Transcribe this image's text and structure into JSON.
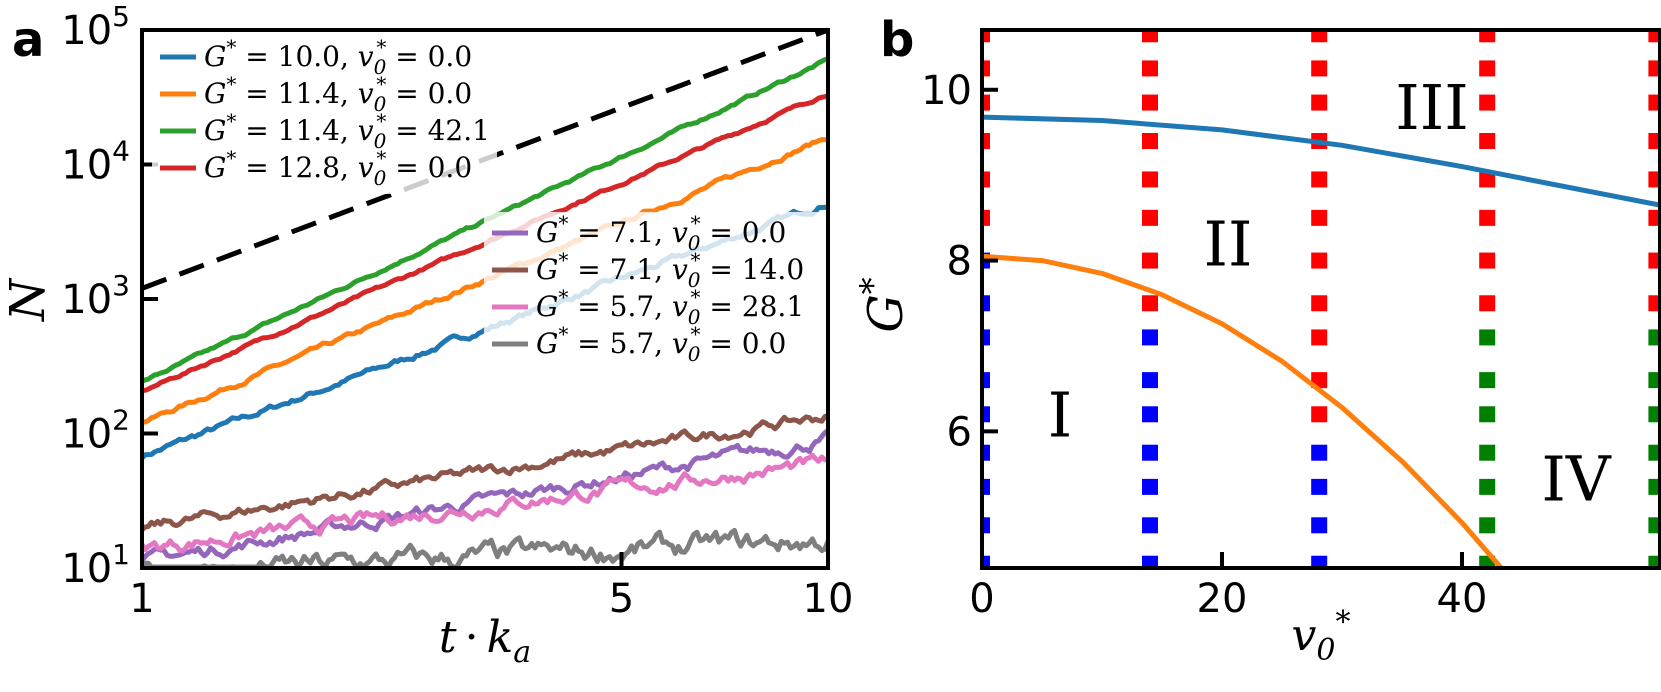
{
  "chart_data": [
    {
      "panel_label": "a",
      "type": "line",
      "xlabel": "t · k_a",
      "ylabel": "N",
      "x_scale": "log",
      "y_scale": "log",
      "xlim": [
        1,
        10
      ],
      "ylim": [
        10,
        100000
      ],
      "x_ticks": [
        {
          "value": 1,
          "label": "1"
        },
        {
          "value": 5,
          "label": "5"
        },
        {
          "value": 10,
          "label": "10"
        }
      ],
      "y_ticks": [
        {
          "value": 10,
          "base": "10",
          "exp": "1"
        },
        {
          "value": 100,
          "base": "10",
          "exp": "2"
        },
        {
          "value": 1000,
          "base": "10",
          "exp": "3"
        },
        {
          "value": 10000,
          "base": "10",
          "exp": "4"
        },
        {
          "value": 100000,
          "base": "10",
          "exp": "5"
        }
      ],
      "guide_line": {
        "style": "dashed",
        "color": "#000000",
        "x": [
          1,
          10
        ],
        "y": [
          1200,
          100000
        ]
      },
      "series": [
        {
          "name": "G* = 10.0, v0* = 0.0",
          "g": "10.0",
          "v": "0.0",
          "color": "#1f77b4",
          "x": [
            1,
            10
          ],
          "y": [
            68,
            5200
          ],
          "noise": 0.02
        },
        {
          "name": "G* = 11.4, v0* = 0.0",
          "g": "11.4",
          "v": "0.0",
          "color": "#ff7f0e",
          "x": [
            1,
            10
          ],
          "y": [
            120,
            16000
          ],
          "noise": 0.015
        },
        {
          "name": "G* = 11.4, v0* = 42.1",
          "g": "11.4",
          "v": "42.1",
          "color": "#2ca02c",
          "x": [
            1,
            10
          ],
          "y": [
            240,
            60000
          ],
          "noise": 0.01
        },
        {
          "name": "G* = 12.8, v0* = 0.0",
          "g": "12.8",
          "v": "0.0",
          "color": "#d62728",
          "x": [
            1,
            10
          ],
          "y": [
            205,
            34000
          ],
          "noise": 0.01
        },
        {
          "name": "G* = 7.1, v0* = 0.0",
          "g": "7.1",
          "v": "0.0",
          "color": "#9467bd",
          "x": [
            1,
            10
          ],
          "y": [
            11,
            90
          ],
          "noise": 0.04
        },
        {
          "name": "G* = 7.1, v0* = 14.0",
          "g": "7.1",
          "v": "14.0",
          "color": "#8c564b",
          "x": [
            1,
            10
          ],
          "y": [
            20,
            135
          ],
          "noise": 0.035
        },
        {
          "name": "G* = 5.7, v0* = 28.1",
          "g": "5.7",
          "v": "28.1",
          "color": "#e377c2",
          "x": [
            1,
            10
          ],
          "y": [
            14,
            60
          ],
          "noise": 0.045
        },
        {
          "name": "G* = 5.7, v0* = 0.0",
          "g": "5.7",
          "v": "0.0",
          "color": "#7f7f7f",
          "x": [
            1,
            10
          ],
          "y": [
            9,
            16
          ],
          "noise": 0.07
        }
      ]
    },
    {
      "panel_label": "b",
      "type": "scatter",
      "xlabel": "v0*",
      "ylabel": "G*",
      "xlim": [
        0,
        56.5
      ],
      "ylim": [
        4.4,
        10.7
      ],
      "x_ticks": [
        {
          "value": 0,
          "label": "0"
        },
        {
          "value": 20,
          "label": "20"
        },
        {
          "value": 40,
          "label": "40"
        }
      ],
      "y_ticks": [
        {
          "value": 6,
          "label": "6"
        },
        {
          "value": 8,
          "label": "8"
        },
        {
          "value": 10,
          "label": "10"
        }
      ],
      "marker": "square",
      "columns_x": [
        0,
        14,
        28.1,
        42.1,
        56.2
      ],
      "rows_y": [
        4.45,
        4.9,
        5.35,
        5.75,
        6.2,
        6.6,
        7.1,
        7.5,
        8.0,
        8.5,
        8.95,
        9.4,
        9.85,
        10.25,
        10.65
      ],
      "categories_by_column": [
        [
          "blue",
          "blue",
          "blue",
          "blue",
          "blue",
          "blue",
          "blue",
          "blue",
          "blue",
          "red",
          "red",
          "red",
          "red",
          "red",
          "red"
        ],
        [
          "blue",
          "blue",
          "blue",
          "blue",
          "blue",
          "blue",
          "blue",
          "red",
          "red",
          "red",
          "red",
          "red",
          "red",
          "red",
          "red"
        ],
        [
          "blue",
          "blue",
          "blue",
          "blue",
          "red",
          "red",
          "red",
          "red",
          "red",
          "red",
          "red",
          "red",
          "red",
          "red",
          "red"
        ],
        [
          "green",
          "green",
          "green",
          "green",
          "green",
          "green",
          "green",
          "red",
          "red",
          "red",
          "red",
          "red",
          "red",
          "red",
          "red"
        ],
        [
          "green",
          "green",
          "green",
          "green",
          "green",
          "green",
          "green",
          "red",
          "red",
          "red",
          "red",
          "red",
          "red",
          "red",
          "red"
        ]
      ],
      "category_colors": {
        "blue": "#0000ff",
        "red": "#ff0000",
        "green": "#008000"
      },
      "boundaries": [
        {
          "color": "#1f77b4",
          "x": [
            0,
            10,
            20,
            30,
            40,
            56.5
          ],
          "y": [
            9.68,
            9.64,
            9.53,
            9.35,
            9.1,
            8.65
          ]
        },
        {
          "color": "#ff7f0e",
          "x": [
            0,
            5,
            10,
            15,
            20,
            25,
            30,
            35,
            40,
            45,
            48
          ],
          "y": [
            8.05,
            8.0,
            7.85,
            7.6,
            7.26,
            6.82,
            6.28,
            5.65,
            4.93,
            4.12,
            4.4
          ]
        }
      ],
      "regions": [
        {
          "label": "I",
          "x": 6.5,
          "y": 6.2
        },
        {
          "label": "II",
          "x": 20.5,
          "y": 8.2
        },
        {
          "label": "III",
          "x": 37.5,
          "y": 9.8
        },
        {
          "label": "IV",
          "x": 49.5,
          "y": 5.45
        }
      ]
    }
  ]
}
